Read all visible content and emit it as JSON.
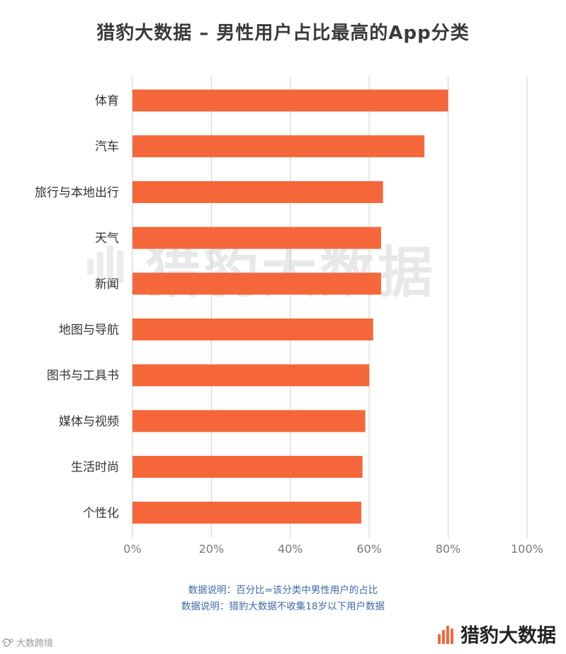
{
  "title": "猎豹大数据 – 男性用户占比最高的App分类",
  "watermark_text": "猎豹大数据",
  "notes": [
    "数据说明：百分比=该分类中男性用户的占比",
    "数据说明：猎豹大数据不收集18岁以下用户数据"
  ],
  "bottom_left_text": "大数跨境",
  "brand_text": "猎豹大数据",
  "colors": {
    "bar": "#f5673a",
    "grid": "#cfcfcf",
    "axis_text": "#7a7a7a",
    "label_text": "#333333",
    "note_text": "#3f6aa8",
    "brand_accent": "#f5673a"
  },
  "chart_data": {
    "type": "bar",
    "orientation": "horizontal",
    "categories": [
      "体育",
      "汽车",
      "旅行与本地出行",
      "天气",
      "新闻",
      "地图与导航",
      "图书与工具书",
      "媒体与视频",
      "生活时尚",
      "个性化"
    ],
    "values": [
      80,
      74,
      63.5,
      63,
      63,
      61,
      60,
      59,
      58.3,
      58
    ],
    "xlim": [
      0,
      100
    ],
    "xticks": [
      "0%",
      "20%",
      "40%",
      "60%",
      "80%",
      "100%"
    ],
    "tick_values": [
      0,
      20,
      40,
      60,
      80,
      100
    ],
    "grid": true,
    "title": "猎豹大数据 – 男性用户占比最高的App分类",
    "xlabel": "",
    "ylabel": ""
  }
}
